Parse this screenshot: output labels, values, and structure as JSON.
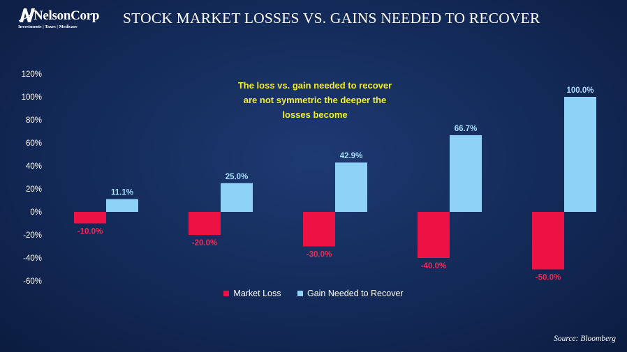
{
  "logo": {
    "name": "NelsonCorp",
    "tagline": "Investments | Taxes | Medicare"
  },
  "title": "STOCK MARKET LOSSES VS. GAINS NEEDED TO RECOVER",
  "annotation": "The loss vs. gain needed to recover are not symmetric the deeper the losses become",
  "source": "Source: Bloomberg",
  "colors": {
    "loss": "#ee1144",
    "gain": "#8fd2f8",
    "loss_label": "#f02a55",
    "gain_label": "#a9ddff",
    "annotation": "#f4ee28"
  },
  "chart_data": {
    "type": "bar",
    "categories": [
      "",
      "",
      "",
      "",
      ""
    ],
    "series": [
      {
        "name": "Market Loss",
        "values": [
          -10.0,
          -20.0,
          -30.0,
          -40.0,
          -50.0
        ],
        "labels": [
          "-10.0%",
          "-20.0%",
          "-30.0%",
          "-40.0%",
          "-50.0%"
        ]
      },
      {
        "name": "Gain Needed to Recover",
        "values": [
          11.1,
          25.0,
          42.9,
          66.7,
          100.0
        ],
        "labels": [
          "11.1%",
          "25.0%",
          "42.9%",
          "66.7%",
          "100.0%"
        ]
      }
    ],
    "ylim": [
      -60,
      120
    ],
    "yticks": [
      "120%",
      "100%",
      "80%",
      "60%",
      "40%",
      "20%",
      "0%",
      "-20%",
      "-40%",
      "-60%"
    ],
    "ytick_values": [
      120,
      100,
      80,
      60,
      40,
      20,
      0,
      -20,
      -40,
      -60
    ],
    "grid": false,
    "legend": "bottom-center"
  }
}
